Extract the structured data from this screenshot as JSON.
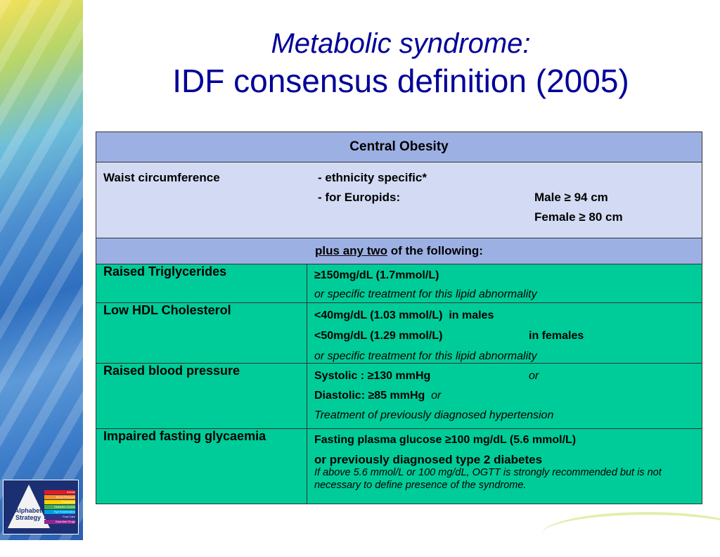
{
  "title": {
    "line1": "Metabolic syndrome:",
    "line2": "IDF consensus definition (2005)"
  },
  "table": {
    "header": "Central Obesity",
    "waist": {
      "label": "Waist circumference",
      "ethnicity": "- ethnicity specific*",
      "europids": "- for Europids:",
      "male": "Male ≥ 94 cm",
      "female": "Female ≥ 80 cm"
    },
    "plus": {
      "underlined": "plus any two",
      "rest": " of the following:"
    },
    "rows": [
      {
        "name": "Raised Triglycerides",
        "line1": "≥150mg/dL (1.7mmol/L)",
        "line2": "or specific treatment for this lipid abnormality"
      },
      {
        "name": "Low HDL Cholesterol",
        "line1a": "<40mg/dL (1.03 mmol/L)",
        "line1b": "in males",
        "line2a": "<50mg/dL (1.29 mmol/L)",
        "line2b": "in females",
        "line3": "or specific treatment for this lipid abnormality"
      },
      {
        "name": "Raised blood pressure",
        "line1a": "Systolic : ≥130 mmHg",
        "line1b": "or",
        "line2a": "Diastolic: ≥85 mmHg",
        "line2b": "or",
        "line3": "Treatment of previously diagnosed hypertension"
      },
      {
        "name": "Impaired fasting glycaemia",
        "line1": "Fasting plasma glucose ≥100 mg/dL (5.6 mmol/L)",
        "line2": "or previously diagnosed type 2 diabetes",
        "line3": "If above 5.6 mmol/L or 100 mg/dL, OGTT is strongly recommended but is not necessary to define presence of the syndrome."
      }
    ]
  },
  "logo": {
    "text": "Alphabet Strategy",
    "bars": [
      "Advice",
      "Blood Pressure",
      "Cholesterol",
      "Diabetes Control",
      "Eye Examination",
      "Foot Care",
      "Guardian Drugs"
    ]
  },
  "colors": {
    "title": "#000099",
    "header_bg": "#9db0e4",
    "pale_bg": "#d2dbf3",
    "green_bg": "#00cc99"
  }
}
